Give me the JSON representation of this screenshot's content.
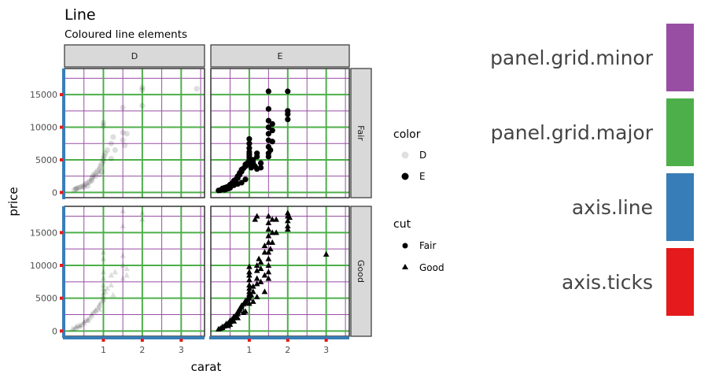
{
  "chart_data": {
    "type": "scatter",
    "title": "Line",
    "subtitle": "Coloured line elements",
    "xlabel": "carat",
    "ylabel": "price",
    "x_ticks": [
      1,
      2,
      3
    ],
    "y_ticks": [
      0,
      5000,
      10000,
      15000
    ],
    "xlim": [
      0,
      3.6
    ],
    "ylim": [
      -800,
      19000
    ],
    "grid": true,
    "facet_cols": [
      "D",
      "E"
    ],
    "facet_rows": [
      "Fair",
      "Good"
    ],
    "legend": {
      "placement": "right",
      "color": {
        "title": "color",
        "entries": [
          "D",
          "E"
        ]
      },
      "cut": {
        "title": "cut",
        "entries": [
          "Fair",
          "Good"
        ]
      }
    },
    "panels": [
      {
        "col": "D",
        "row": "Fair",
        "color": "D",
        "cut": "Fair",
        "points": [
          [
            0.25,
            400
          ],
          [
            0.3,
            600
          ],
          [
            0.35,
            700
          ],
          [
            0.4,
            800
          ],
          [
            0.45,
            900
          ],
          [
            0.5,
            1100
          ],
          [
            0.55,
            1300
          ],
          [
            0.6,
            1500
          ],
          [
            0.65,
            1700
          ],
          [
            0.7,
            2100
          ],
          [
            0.72,
            2400
          ],
          [
            0.75,
            2700
          ],
          [
            0.8,
            3000
          ],
          [
            0.85,
            3300
          ],
          [
            0.9,
            3600
          ],
          [
            0.92,
            4000
          ],
          [
            0.95,
            4400
          ],
          [
            1.0,
            4800
          ],
          [
            1.0,
            5200
          ],
          [
            1.02,
            5600
          ],
          [
            1.05,
            6000
          ],
          [
            0.95,
            3200
          ],
          [
            0.9,
            2800
          ],
          [
            0.8,
            2500
          ],
          [
            0.7,
            1800
          ],
          [
            1.1,
            6500
          ],
          [
            1.2,
            7500
          ],
          [
            1.25,
            8500
          ],
          [
            1.0,
            10200
          ],
          [
            1.0,
            10700
          ],
          [
            1.5,
            8000
          ],
          [
            1.5,
            9200
          ],
          [
            1.55,
            7200
          ],
          [
            1.6,
            9000
          ],
          [
            1.5,
            13000
          ],
          [
            2.0,
            13300
          ],
          [
            2.0,
            15700
          ],
          [
            2.0,
            16100
          ],
          [
            3.4,
            15900
          ],
          [
            1.2,
            5200
          ],
          [
            1.3,
            6500
          ],
          [
            0.6,
            1000
          ],
          [
            0.5,
            800
          ],
          [
            0.3,
            500
          ]
        ]
      },
      {
        "col": "E",
        "row": "Fair",
        "color": "E",
        "cut": "Fair",
        "points": [
          [
            0.2,
            300
          ],
          [
            0.25,
            350
          ],
          [
            0.3,
            450
          ],
          [
            0.3,
            600
          ],
          [
            0.35,
            700
          ],
          [
            0.4,
            800
          ],
          [
            0.45,
            900
          ],
          [
            0.5,
            1000
          ],
          [
            0.5,
            1200
          ],
          [
            0.55,
            1400
          ],
          [
            0.6,
            1600
          ],
          [
            0.6,
            1800
          ],
          [
            0.65,
            2000
          ],
          [
            0.7,
            2200
          ],
          [
            0.7,
            2500
          ],
          [
            0.75,
            2700
          ],
          [
            0.75,
            3000
          ],
          [
            0.8,
            3200
          ],
          [
            0.8,
            3500
          ],
          [
            0.85,
            3700
          ],
          [
            0.9,
            4000
          ],
          [
            0.9,
            4300
          ],
          [
            0.95,
            4500
          ],
          [
            1.0,
            4800
          ],
          [
            1.0,
            5000
          ],
          [
            1.0,
            5400
          ],
          [
            1.0,
            5800
          ],
          [
            1.0,
            6200
          ],
          [
            1.0,
            6800
          ],
          [
            1.0,
            7500
          ],
          [
            1.0,
            8200
          ],
          [
            1.02,
            4200
          ],
          [
            1.05,
            3800
          ],
          [
            1.1,
            4500
          ],
          [
            1.1,
            5000
          ],
          [
            1.2,
            5500
          ],
          [
            1.2,
            6000
          ],
          [
            1.3,
            3800
          ],
          [
            1.3,
            4500
          ],
          [
            1.5,
            5500
          ],
          [
            1.5,
            6000
          ],
          [
            1.5,
            7000
          ],
          [
            1.5,
            8000
          ],
          [
            1.5,
            9000
          ],
          [
            1.5,
            10000
          ],
          [
            1.55,
            6500
          ],
          [
            1.6,
            7800
          ],
          [
            1.6,
            9500
          ],
          [
            1.6,
            10500
          ],
          [
            1.5,
            11000
          ],
          [
            1.5,
            12800
          ],
          [
            1.5,
            15500
          ],
          [
            2.0,
            11200
          ],
          [
            2.0,
            12000
          ],
          [
            2.0,
            12500
          ],
          [
            2.0,
            15500
          ],
          [
            0.9,
            2000
          ],
          [
            0.8,
            1500
          ],
          [
            0.7,
            1300
          ],
          [
            0.6,
            1100
          ],
          [
            0.5,
            700
          ],
          [
            0.4,
            500
          ],
          [
            1.2,
            3600
          ],
          [
            1.15,
            4000
          ],
          [
            0.35,
            400
          ],
          [
            0.45,
            600
          ]
        ]
      },
      {
        "col": "D",
        "row": "Good",
        "color": "D",
        "cut": "Good",
        "points": [
          [
            0.2,
            350
          ],
          [
            0.25,
            400
          ],
          [
            0.3,
            500
          ],
          [
            0.3,
            700
          ],
          [
            0.35,
            800
          ],
          [
            0.4,
            900
          ],
          [
            0.45,
            1000
          ],
          [
            0.5,
            1200
          ],
          [
            0.5,
            1400
          ],
          [
            0.55,
            1600
          ],
          [
            0.6,
            1800
          ],
          [
            0.65,
            2000
          ],
          [
            0.7,
            2300
          ],
          [
            0.7,
            2600
          ],
          [
            0.75,
            2900
          ],
          [
            0.8,
            3200
          ],
          [
            0.85,
            3500
          ],
          [
            0.9,
            3800
          ],
          [
            0.9,
            4100
          ],
          [
            0.95,
            4400
          ],
          [
            1.0,
            4700
          ],
          [
            1.0,
            5000
          ],
          [
            1.0,
            5400
          ],
          [
            1.0,
            5800
          ],
          [
            1.0,
            6400
          ],
          [
            1.0,
            7000
          ],
          [
            1.0,
            8000
          ],
          [
            1.0,
            9000
          ],
          [
            1.0,
            11000
          ],
          [
            1.0,
            12000
          ],
          [
            1.05,
            6000
          ],
          [
            1.1,
            6500
          ],
          [
            1.2,
            7000
          ],
          [
            1.2,
            8500
          ],
          [
            1.3,
            9000
          ],
          [
            1.5,
            8000
          ],
          [
            1.5,
            10000
          ],
          [
            1.5,
            11500
          ],
          [
            1.5,
            16000
          ],
          [
            1.5,
            18300
          ],
          [
            1.6,
            9500
          ],
          [
            1.6,
            8500
          ],
          [
            2.0,
            17000
          ],
          [
            2.0,
            18000
          ],
          [
            1.25,
            5500
          ],
          [
            0.8,
            3000
          ],
          [
            0.6,
            1600
          ],
          [
            0.4,
            700
          ],
          [
            0.9,
            3300
          ]
        ]
      },
      {
        "col": "E",
        "row": "Good",
        "color": "E",
        "cut": "Good",
        "points": [
          [
            0.2,
            300
          ],
          [
            0.25,
            400
          ],
          [
            0.3,
            500
          ],
          [
            0.3,
            650
          ],
          [
            0.35,
            750
          ],
          [
            0.4,
            900
          ],
          [
            0.4,
            1100
          ],
          [
            0.45,
            1200
          ],
          [
            0.5,
            1400
          ],
          [
            0.5,
            1600
          ],
          [
            0.55,
            1800
          ],
          [
            0.6,
            2000
          ],
          [
            0.6,
            2200
          ],
          [
            0.65,
            2400
          ],
          [
            0.7,
            2600
          ],
          [
            0.7,
            2900
          ],
          [
            0.75,
            3100
          ],
          [
            0.75,
            3400
          ],
          [
            0.8,
            3600
          ],
          [
            0.8,
            3900
          ],
          [
            0.85,
            4100
          ],
          [
            0.9,
            4300
          ],
          [
            0.9,
            4600
          ],
          [
            0.95,
            4800
          ],
          [
            1.0,
            5000
          ],
          [
            1.0,
            5300
          ],
          [
            1.0,
            5600
          ],
          [
            1.0,
            6000
          ],
          [
            1.0,
            6500
          ],
          [
            1.0,
            7000
          ],
          [
            1.0,
            7800
          ],
          [
            1.0,
            8500
          ],
          [
            1.0,
            9000
          ],
          [
            1.0,
            9800
          ],
          [
            1.05,
            5500
          ],
          [
            1.1,
            6000
          ],
          [
            1.1,
            6800
          ],
          [
            1.2,
            7200
          ],
          [
            1.2,
            8000
          ],
          [
            1.2,
            9200
          ],
          [
            1.2,
            10000
          ],
          [
            1.25,
            11000
          ],
          [
            1.3,
            9500
          ],
          [
            1.3,
            10500
          ],
          [
            1.4,
            12000
          ],
          [
            1.4,
            13000
          ],
          [
            1.5,
            8000
          ],
          [
            1.5,
            9000
          ],
          [
            1.5,
            10000
          ],
          [
            1.5,
            11000
          ],
          [
            1.5,
            12000
          ],
          [
            1.5,
            13500
          ],
          [
            1.5,
            14500
          ],
          [
            1.5,
            15500
          ],
          [
            1.5,
            16500
          ],
          [
            1.5,
            17500
          ],
          [
            1.55,
            12500
          ],
          [
            1.6,
            13500
          ],
          [
            1.6,
            15000
          ],
          [
            1.6,
            17000
          ],
          [
            1.7,
            15000
          ],
          [
            1.2,
            17500
          ],
          [
            1.15,
            17000
          ],
          [
            1.7,
            17000
          ],
          [
            2.0,
            15500
          ],
          [
            2.0,
            16000
          ],
          [
            2.0,
            16800
          ],
          [
            2.0,
            17500
          ],
          [
            2.0,
            18000
          ],
          [
            2.05,
            17300
          ],
          [
            3.0,
            11700
          ],
          [
            0.9,
            3000
          ],
          [
            0.85,
            2800
          ],
          [
            0.7,
            2000
          ],
          [
            0.6,
            1500
          ],
          [
            0.5,
            1000
          ],
          [
            0.45,
            800
          ],
          [
            1.3,
            7500
          ],
          [
            1.4,
            8500
          ],
          [
            1.1,
            4500
          ],
          [
            1.0,
            4200
          ],
          [
            1.2,
            5200
          ],
          [
            1.4,
            6000
          ]
        ]
      }
    ]
  },
  "swatches": [
    {
      "label": "panel.grid.minor",
      "color": "#984ea3"
    },
    {
      "label": "panel.grid.major",
      "color": "#4daf4a"
    },
    {
      "label": "axis.line",
      "color": "#377eb8"
    },
    {
      "label": "axis.ticks",
      "color": "#e41a1c"
    }
  ]
}
